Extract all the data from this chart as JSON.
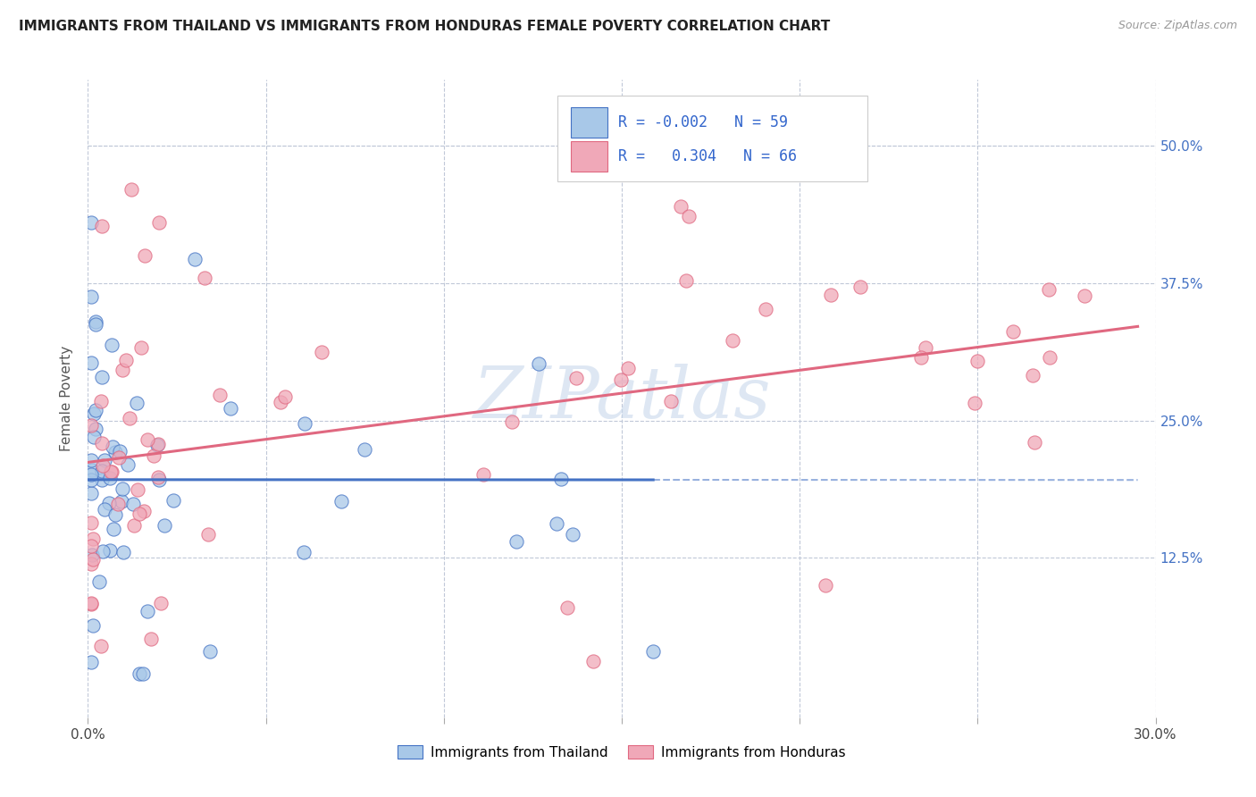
{
  "title": "IMMIGRANTS FROM THAILAND VS IMMIGRANTS FROM HONDURAS FEMALE POVERTY CORRELATION CHART",
  "source": "Source: ZipAtlas.com",
  "ylabel": "Female Poverty",
  "xlim": [
    0.0,
    0.3
  ],
  "ylim": [
    -0.02,
    0.56
  ],
  "xticks": [
    0.0,
    0.05,
    0.1,
    0.15,
    0.2,
    0.25,
    0.3
  ],
  "yticks": [
    0.125,
    0.25,
    0.375,
    0.5
  ],
  "yticklabels": [
    "12.5%",
    "25.0%",
    "37.5%",
    "50.0%"
  ],
  "legend_r_thailand": "-0.002",
  "legend_n_thailand": "59",
  "legend_r_honduras": "0.304",
  "legend_n_honduras": "66",
  "color_thailand": "#a8c8e8",
  "color_honduras": "#f0a8b8",
  "color_thailand_line": "#4472c4",
  "color_honduras_line": "#e06880",
  "watermark_text": "ZIPatlas",
  "watermark_color": "#c8d8ec"
}
